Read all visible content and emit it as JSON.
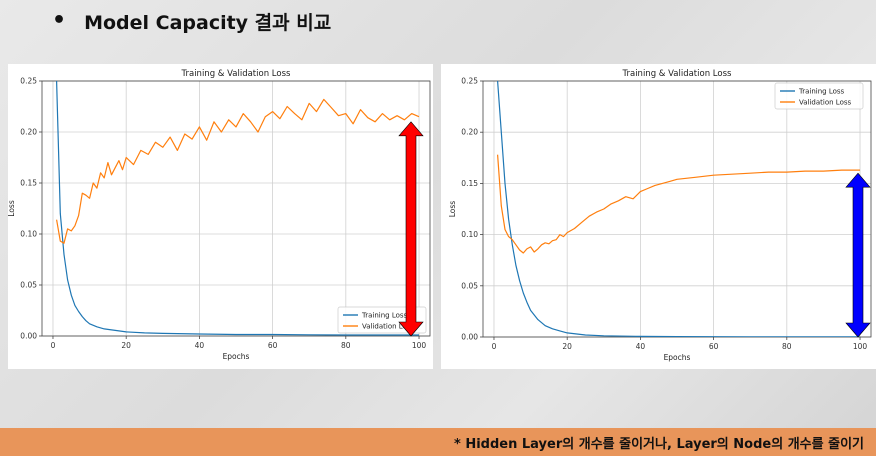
{
  "slide": {
    "title": "Model Capacity 결과 비교",
    "footer": "* Hidden Layer의 개수를 줄이거나, Layer의 Node의 개수를 줄이기"
  },
  "chart_data": [
    {
      "type": "line",
      "title": "Training & Validation Loss",
      "xlabel": "Epochs",
      "ylabel": "Loss",
      "xlim": [
        -3,
        103
      ],
      "ylim": [
        0,
        0.25
      ],
      "xticks": [
        0,
        20,
        40,
        60,
        80,
        100
      ],
      "yticks": [
        0.0,
        0.05,
        0.1,
        0.15,
        0.2,
        0.25
      ],
      "grid": true,
      "legend_position": "bottom-right",
      "annotation": {
        "shape": "double-arrow",
        "color": "#ff0000",
        "x": 100,
        "y_from": 0.0,
        "y_to": 0.21
      },
      "series": [
        {
          "name": "Training Loss",
          "color": "#1f77b4",
          "x": [
            1,
            2,
            3,
            4,
            5,
            6,
            7,
            8,
            9,
            10,
            12,
            14,
            16,
            18,
            20,
            25,
            30,
            40,
            50,
            60,
            70,
            80,
            90,
            100
          ],
          "y": [
            0.25,
            0.12,
            0.08,
            0.055,
            0.04,
            0.03,
            0.024,
            0.019,
            0.015,
            0.012,
            0.009,
            0.007,
            0.006,
            0.005,
            0.004,
            0.003,
            0.0025,
            0.002,
            0.0015,
            0.0015,
            0.0012,
            0.001,
            0.001,
            0.001
          ]
        },
        {
          "name": "Validation Loss",
          "color": "#ff7f0e",
          "x": [
            1,
            2,
            3,
            4,
            5,
            6,
            7,
            8,
            9,
            10,
            11,
            12,
            13,
            14,
            15,
            16,
            17,
            18,
            19,
            20,
            22,
            24,
            26,
            28,
            30,
            32,
            34,
            36,
            38,
            40,
            42,
            44,
            46,
            48,
            50,
            52,
            54,
            56,
            58,
            60,
            62,
            64,
            66,
            68,
            70,
            72,
            74,
            76,
            78,
            80,
            82,
            84,
            86,
            88,
            90,
            92,
            94,
            96,
            98,
            100
          ],
          "y": [
            0.114,
            0.093,
            0.091,
            0.105,
            0.103,
            0.108,
            0.118,
            0.14,
            0.138,
            0.135,
            0.15,
            0.145,
            0.16,
            0.155,
            0.17,
            0.158,
            0.165,
            0.172,
            0.163,
            0.175,
            0.168,
            0.182,
            0.178,
            0.19,
            0.185,
            0.195,
            0.182,
            0.198,
            0.193,
            0.205,
            0.192,
            0.21,
            0.2,
            0.212,
            0.205,
            0.218,
            0.21,
            0.2,
            0.215,
            0.22,
            0.213,
            0.225,
            0.218,
            0.212,
            0.228,
            0.22,
            0.232,
            0.224,
            0.216,
            0.218,
            0.208,
            0.222,
            0.214,
            0.21,
            0.218,
            0.212,
            0.216,
            0.212,
            0.218,
            0.215
          ]
        }
      ]
    },
    {
      "type": "line",
      "title": "Training & Validation Loss",
      "xlabel": "Epochs",
      "ylabel": "Loss",
      "xlim": [
        -3,
        103
      ],
      "ylim": [
        0,
        0.25
      ],
      "xticks": [
        0,
        20,
        40,
        60,
        80,
        100
      ],
      "yticks": [
        0.0,
        0.05,
        0.1,
        0.15,
        0.2,
        0.25
      ],
      "grid": true,
      "legend_position": "top-right",
      "annotation": {
        "shape": "double-arrow",
        "color": "#0000ff",
        "x": 100,
        "y_from": 0.0,
        "y_to": 0.16
      },
      "series": [
        {
          "name": "Training Loss",
          "color": "#1f77b4",
          "x": [
            1,
            2,
            3,
            4,
            5,
            6,
            7,
            8,
            9,
            10,
            12,
            14,
            16,
            18,
            20,
            25,
            30,
            40,
            50,
            60,
            70,
            80,
            90,
            100
          ],
          "y": [
            0.25,
            0.2,
            0.15,
            0.115,
            0.09,
            0.07,
            0.055,
            0.043,
            0.034,
            0.026,
            0.017,
            0.011,
            0.008,
            0.006,
            0.004,
            0.002,
            0.0012,
            0.0006,
            0.0004,
            0.0003,
            0.0002,
            0.0002,
            0.0001,
            0.0001
          ]
        },
        {
          "name": "Validation Loss",
          "color": "#ff7f0e",
          "x": [
            1,
            2,
            3,
            4,
            5,
            6,
            7,
            8,
            9,
            10,
            11,
            12,
            13,
            14,
            15,
            16,
            17,
            18,
            19,
            20,
            22,
            24,
            26,
            28,
            30,
            32,
            34,
            36,
            38,
            40,
            42,
            44,
            46,
            48,
            50,
            55,
            60,
            65,
            70,
            75,
            80,
            85,
            90,
            95,
            100
          ],
          "y": [
            0.178,
            0.128,
            0.105,
            0.098,
            0.095,
            0.09,
            0.085,
            0.082,
            0.086,
            0.088,
            0.083,
            0.086,
            0.09,
            0.092,
            0.091,
            0.094,
            0.095,
            0.1,
            0.098,
            0.102,
            0.106,
            0.112,
            0.118,
            0.122,
            0.125,
            0.13,
            0.133,
            0.137,
            0.135,
            0.142,
            0.145,
            0.148,
            0.15,
            0.152,
            0.154,
            0.156,
            0.158,
            0.159,
            0.16,
            0.161,
            0.161,
            0.162,
            0.162,
            0.163,
            0.163
          ]
        }
      ]
    }
  ]
}
